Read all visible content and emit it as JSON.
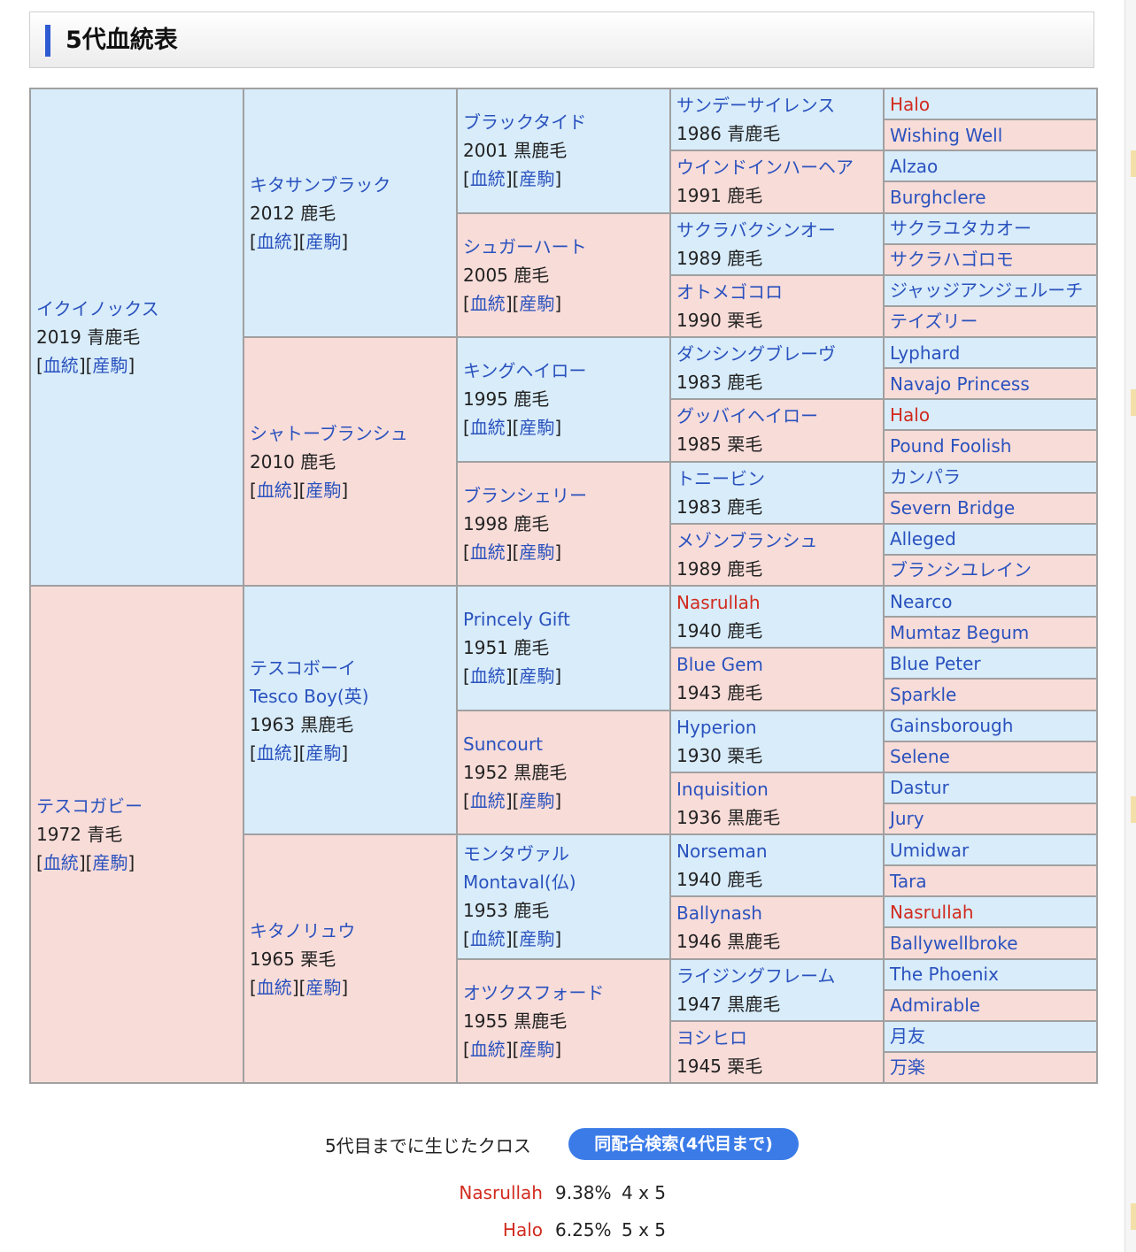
{
  "section": {
    "title": "5代血統表"
  },
  "links": {
    "pedigree": "血統",
    "progeny": "産駒"
  },
  "horses": {
    "g1": [
      {
        "name": "イクイノックス",
        "info": "2019 青鹿毛"
      },
      {
        "name": "テスコガビー",
        "info": "1972 青毛"
      }
    ],
    "g2": [
      {
        "name": "キタサンブラック",
        "info": "2012 鹿毛"
      },
      {
        "name": "シャトーブランシュ",
        "info": "2010 鹿毛"
      },
      {
        "name": "テスコボーイ",
        "ename": "Tesco Boy(英)",
        "info": "1963 黒鹿毛"
      },
      {
        "name": "キタノリュウ",
        "info": "1965 栗毛"
      }
    ],
    "g3": [
      {
        "name": "ブラックタイド",
        "info": "2001 黒鹿毛"
      },
      {
        "name": "シュガーハート",
        "info": "2005 鹿毛"
      },
      {
        "name": "キングヘイロー",
        "info": "1995 鹿毛"
      },
      {
        "name": "ブランシェリー",
        "info": "1998 鹿毛"
      },
      {
        "name": "Princely Gift",
        "info": "1951 鹿毛"
      },
      {
        "name": "Suncourt",
        "info": "1952 黒鹿毛"
      },
      {
        "name": "モンタヴァル",
        "ename": "Montaval(仏)",
        "info": "1953 鹿毛"
      },
      {
        "name": "オツクスフォード",
        "info": "1955 黒鹿毛"
      }
    ],
    "g4": [
      {
        "name": "サンデーサイレンス",
        "info": "1986 青鹿毛"
      },
      {
        "name": "ウインドインハーヘア",
        "info": "1991 鹿毛"
      },
      {
        "name": "サクラバクシンオー",
        "info": "1989 鹿毛"
      },
      {
        "name": "オトメゴコロ",
        "info": "1990 栗毛"
      },
      {
        "name": "ダンシングブレーヴ",
        "info": "1983 鹿毛"
      },
      {
        "name": "グッバイヘイロー",
        "info": "1985 栗毛"
      },
      {
        "name": "トニービン",
        "info": "1983 鹿毛"
      },
      {
        "name": "メゾンブランシュ",
        "info": "1989 鹿毛"
      },
      {
        "name": "Nasrullah",
        "info": "1940 鹿毛"
      },
      {
        "name": "Blue Gem",
        "info": "1943 鹿毛"
      },
      {
        "name": "Hyperion",
        "info": "1930 栗毛"
      },
      {
        "name": "Inquisition",
        "info": "1936 黒鹿毛"
      },
      {
        "name": "Norseman",
        "info": "1940 鹿毛"
      },
      {
        "name": "Ballynash",
        "info": "1946 黒鹿毛"
      },
      {
        "name": "ライジングフレーム",
        "info": "1947 黒鹿毛"
      },
      {
        "name": "ヨシヒロ",
        "info": "1945 栗毛"
      }
    ],
    "g5": [
      "Halo",
      "Wishing Well",
      "Alzao",
      "Burghclere",
      "サクラユタカオー",
      "サクラハゴロモ",
      "ジャッジアンジェルーチ",
      "テイズリー",
      "Lyphard",
      "Navajo Princess",
      "Halo",
      "Pound Foolish",
      "カンパラ",
      "Severn Bridge",
      "Alleged",
      "ブランシユレイン",
      "Nearco",
      "Mumtaz Begum",
      "Blue Peter",
      "Sparkle",
      "Gainsborough",
      "Selene",
      "Dastur",
      "Jury",
      "Umidwar",
      "Tara",
      "Nasrullah",
      "Ballywellbroke",
      "The Phoenix",
      "Admirable",
      "月友",
      "万楽"
    ]
  },
  "cross": {
    "label": "5代目までに生じたクロス",
    "button": "同配合検索(4代目まで)",
    "items": [
      {
        "name": "Nasrullah",
        "pct": "9.38%",
        "gen": "4 x 5"
      },
      {
        "name": "Halo",
        "pct": "6.25%",
        "gen": "5 x 5"
      }
    ]
  },
  "colors": {
    "male": "#d8ecfa",
    "female": "#f8dcd8",
    "link": "#2a52be",
    "cross": "#d22b1e",
    "accent": "#2f5bd3"
  }
}
